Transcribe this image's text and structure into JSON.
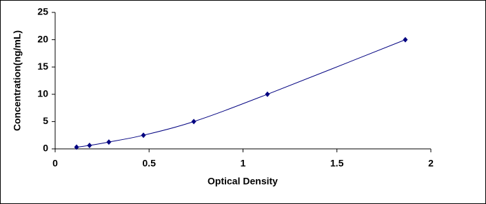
{
  "chart_data": {
    "type": "scatter",
    "line": true,
    "smooth": true,
    "color": "#000080",
    "x_label": "Optical Density",
    "y_label": "Concentration(ng/mL)",
    "x": [
      0.114,
      0.183,
      0.286,
      0.47,
      0.738,
      1.13,
      1.864
    ],
    "values": [
      0.31,
      0.63,
      1.25,
      2.5,
      5,
      10,
      20
    ],
    "xlim": [
      0,
      2
    ],
    "xticks": [
      0,
      0.5,
      1,
      1.5,
      2
    ],
    "ylim": [
      0,
      25
    ],
    "yticks": [
      0,
      5,
      10,
      15,
      20,
      25
    ],
    "grid": false
  }
}
